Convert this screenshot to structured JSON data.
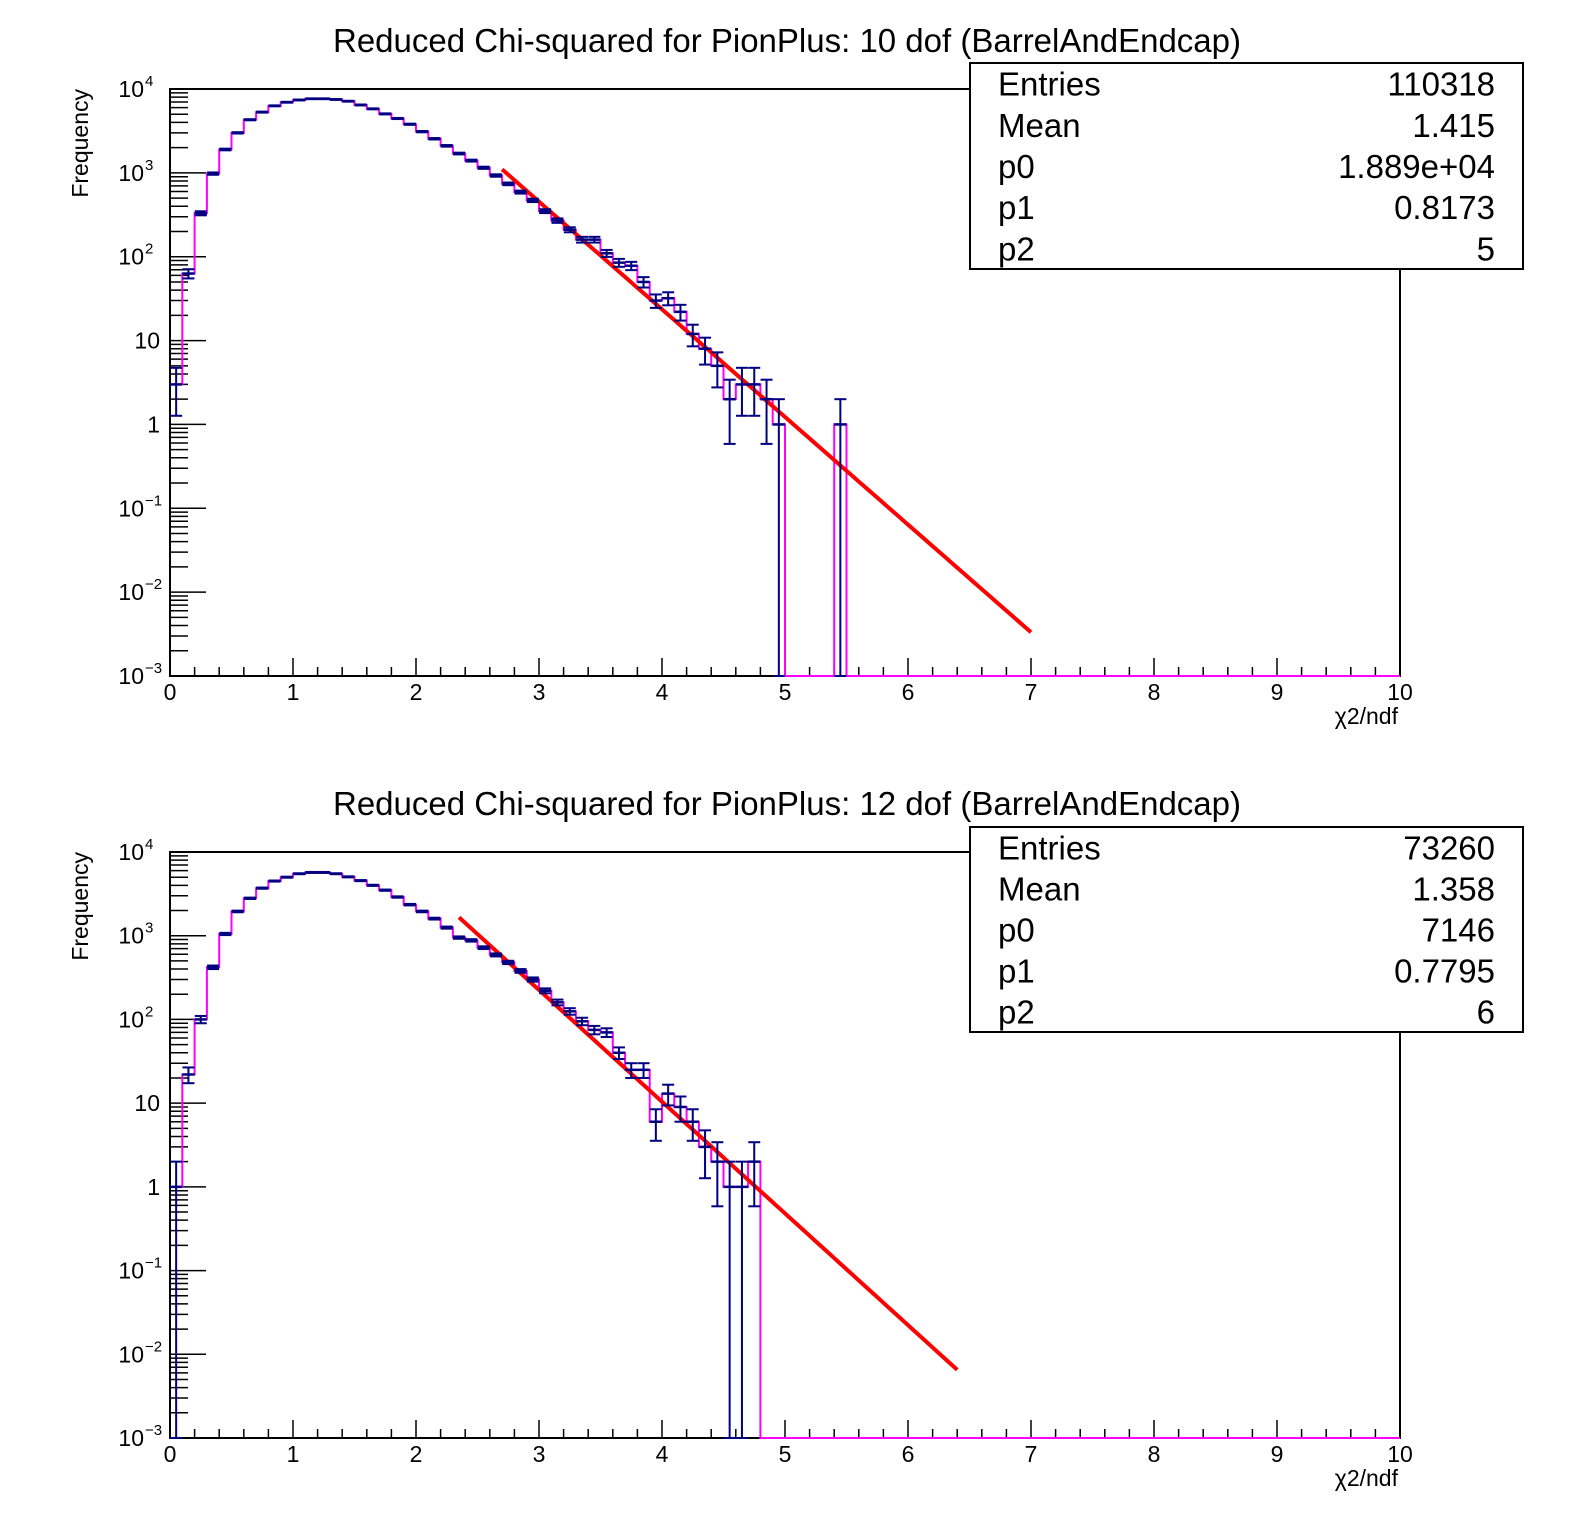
{
  "colors": {
    "histogram": "#ff00ff",
    "points": "#000080",
    "fit": "#ff0000",
    "axes": "#000000"
  },
  "chart_data": [
    {
      "type": "histogram",
      "title": "Reduced Chi-squared for PionPlus: 10 dof (BarrelAndEndcap)",
      "xlabel": "χ2/ndf",
      "ylabel": "Frequency",
      "xlim": [
        0,
        10
      ],
      "ylim": [
        0.001,
        10000
      ],
      "yscale": "log",
      "bin_width": 0.1,
      "x_ticks": [
        "0",
        "1",
        "2",
        "3",
        "4",
        "5",
        "6",
        "7",
        "8",
        "9",
        "10"
      ],
      "y_ticks": [
        {
          "value": 0.001,
          "base": "10",
          "exp": "−3"
        },
        {
          "value": 0.01,
          "base": "10",
          "exp": "−2"
        },
        {
          "value": 0.1,
          "base": "10",
          "exp": "−1"
        },
        {
          "value": 1,
          "base": "1",
          "exp": ""
        },
        {
          "value": 10,
          "base": "10",
          "exp": ""
        },
        {
          "value": 100,
          "base": "10",
          "exp": "2"
        },
        {
          "value": 1000,
          "base": "10",
          "exp": "3"
        },
        {
          "value": 10000,
          "base": "10",
          "exp": "4"
        }
      ],
      "bins": [
        [
          0.05,
          3
        ],
        [
          0.15,
          63
        ],
        [
          0.25,
          330
        ],
        [
          0.35,
          980
        ],
        [
          0.45,
          1900
        ],
        [
          0.55,
          3000
        ],
        [
          0.65,
          4300
        ],
        [
          0.75,
          5300
        ],
        [
          0.85,
          6300
        ],
        [
          0.95,
          6950
        ],
        [
          1.05,
          7400
        ],
        [
          1.15,
          7650
        ],
        [
          1.25,
          7650
        ],
        [
          1.35,
          7500
        ],
        [
          1.45,
          7150
        ],
        [
          1.55,
          6450
        ],
        [
          1.65,
          5800
        ],
        [
          1.75,
          5050
        ],
        [
          1.85,
          4450
        ],
        [
          1.95,
          3800
        ],
        [
          2.05,
          3100
        ],
        [
          2.15,
          2550
        ],
        [
          2.25,
          2100
        ],
        [
          2.35,
          1700
        ],
        [
          2.45,
          1400
        ],
        [
          2.55,
          1150
        ],
        [
          2.65,
          930
        ],
        [
          2.75,
          740
        ],
        [
          2.85,
          590
        ],
        [
          2.95,
          470
        ],
        [
          3.05,
          350
        ],
        [
          3.15,
          270
        ],
        [
          3.25,
          210
        ],
        [
          3.35,
          160
        ],
        [
          3.45,
          160
        ],
        [
          3.55,
          110
        ],
        [
          3.65,
          85
        ],
        [
          3.75,
          78
        ],
        [
          3.85,
          50
        ],
        [
          3.95,
          30
        ],
        [
          4.05,
          32
        ],
        [
          4.15,
          22
        ],
        [
          4.25,
          12
        ],
        [
          4.35,
          8
        ],
        [
          4.45,
          5
        ],
        [
          4.55,
          2
        ],
        [
          4.65,
          3
        ],
        [
          4.75,
          3
        ],
        [
          4.85,
          2
        ],
        [
          4.95,
          1
        ],
        [
          5.45,
          1
        ]
      ],
      "fit": {
        "x_range": [
          2.7,
          7.0
        ]
      },
      "stats": [
        {
          "label": "Entries",
          "value": "110318"
        },
        {
          "label": "Mean",
          "value": "1.415"
        },
        {
          "label": "p0",
          "value": "1.889e+04"
        },
        {
          "label": "p1",
          "value": "0.8173"
        },
        {
          "label": "p2",
          "value": "5"
        }
      ]
    },
    {
      "type": "histogram",
      "title": "Reduced Chi-squared for PionPlus: 12 dof (BarrelAndEndcap)",
      "xlabel": "χ2/ndf",
      "ylabel": "Frequency",
      "xlim": [
        0,
        10
      ],
      "ylim": [
        0.001,
        10000
      ],
      "yscale": "log",
      "bin_width": 0.1,
      "x_ticks": [
        "0",
        "1",
        "2",
        "3",
        "4",
        "5",
        "6",
        "7",
        "8",
        "9",
        "10"
      ],
      "y_ticks": [
        {
          "value": 0.001,
          "base": "10",
          "exp": "−3"
        },
        {
          "value": 0.01,
          "base": "10",
          "exp": "−2"
        },
        {
          "value": 0.1,
          "base": "10",
          "exp": "−1"
        },
        {
          "value": 1,
          "base": "1",
          "exp": ""
        },
        {
          "value": 10,
          "base": "10",
          "exp": ""
        },
        {
          "value": 100,
          "base": "10",
          "exp": "2"
        },
        {
          "value": 1000,
          "base": "10",
          "exp": "3"
        },
        {
          "value": 10000,
          "base": "10",
          "exp": "4"
        }
      ],
      "bins": [
        [
          0.05,
          1
        ],
        [
          0.15,
          22
        ],
        [
          0.25,
          100
        ],
        [
          0.35,
          420
        ],
        [
          0.45,
          1050
        ],
        [
          0.55,
          1950
        ],
        [
          0.65,
          2800
        ],
        [
          0.75,
          3700
        ],
        [
          0.85,
          4500
        ],
        [
          0.95,
          5000
        ],
        [
          1.05,
          5500
        ],
        [
          1.15,
          5700
        ],
        [
          1.25,
          5700
        ],
        [
          1.35,
          5500
        ],
        [
          1.45,
          5050
        ],
        [
          1.55,
          4550
        ],
        [
          1.65,
          4000
        ],
        [
          1.75,
          3500
        ],
        [
          1.85,
          2900
        ],
        [
          1.95,
          2350
        ],
        [
          2.05,
          1950
        ],
        [
          2.15,
          1600
        ],
        [
          2.25,
          1250
        ],
        [
          2.35,
          950
        ],
        [
          2.45,
          880
        ],
        [
          2.55,
          720
        ],
        [
          2.65,
          590
        ],
        [
          2.75,
          480
        ],
        [
          2.85,
          380
        ],
        [
          2.95,
          300
        ],
        [
          3.05,
          220
        ],
        [
          3.15,
          160
        ],
        [
          3.25,
          125
        ],
        [
          3.35,
          95
        ],
        [
          3.45,
          75
        ],
        [
          3.55,
          70
        ],
        [
          3.65,
          40
        ],
        [
          3.75,
          25
        ],
        [
          3.85,
          25
        ],
        [
          3.95,
          6
        ],
        [
          4.05,
          13
        ],
        [
          4.15,
          9
        ],
        [
          4.25,
          6
        ],
        [
          4.35,
          3
        ],
        [
          4.45,
          2
        ],
        [
          4.55,
          1
        ],
        [
          4.65,
          1
        ],
        [
          4.75,
          2
        ]
      ],
      "fit": {
        "x_range": [
          2.35,
          6.4
        ]
      },
      "stats": [
        {
          "label": "Entries",
          "value": "73260"
        },
        {
          "label": "Mean",
          "value": "1.358"
        },
        {
          "label": "p0",
          "value": "7146"
        },
        {
          "label": "p1",
          "value": "0.7795"
        },
        {
          "label": "p2",
          "value": "6"
        }
      ]
    }
  ]
}
